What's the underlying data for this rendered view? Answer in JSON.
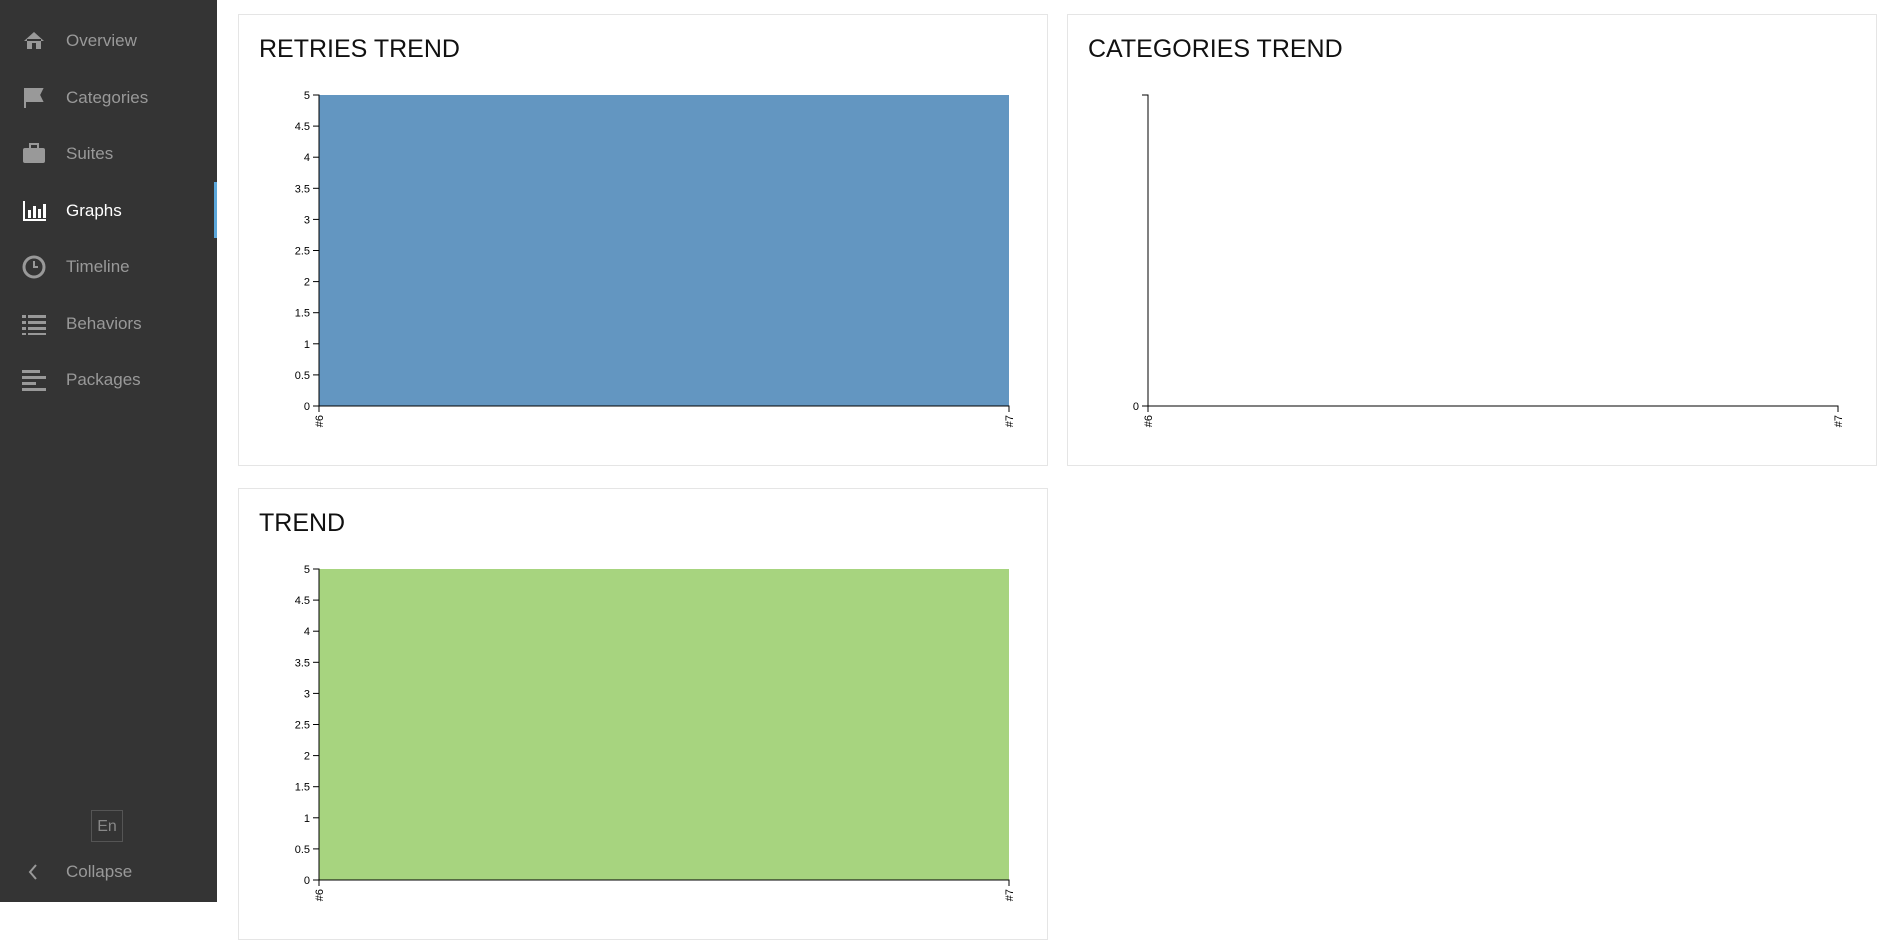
{
  "sidebar": {
    "items": [
      "Overview",
      "Categories",
      "Suites",
      "Graphs",
      "Timeline",
      "Behaviors",
      "Packages"
    ],
    "active": 3,
    "language": "En",
    "collapse": "Collapse"
  },
  "chart_data": [
    {
      "type": "area",
      "title": "RETRIES TREND",
      "categories": [
        "#6",
        "#7"
      ],
      "series": [
        {
          "color": "#6396c1",
          "values": [
            5,
            5
          ]
        }
      ],
      "ylim": [
        0,
        5
      ],
      "yticks": [
        0,
        0.5,
        1,
        1.5,
        2,
        2.5,
        3,
        3.5,
        4,
        4.5,
        5
      ]
    },
    {
      "type": "area",
      "title": "CATEGORIES TREND",
      "categories": [
        "#6",
        "#7"
      ],
      "series": [],
      "yticks": [
        0
      ]
    },
    {
      "type": "area",
      "title": "TREND",
      "categories": [
        "#6",
        "#7"
      ],
      "series": [
        {
          "color": "#a7d47f",
          "values": [
            5,
            5
          ]
        }
      ],
      "ylim": [
        0,
        5
      ],
      "yticks": [
        0,
        0.5,
        1,
        1.5,
        2,
        2.5,
        3,
        3.5,
        4,
        4.5,
        5
      ]
    }
  ]
}
